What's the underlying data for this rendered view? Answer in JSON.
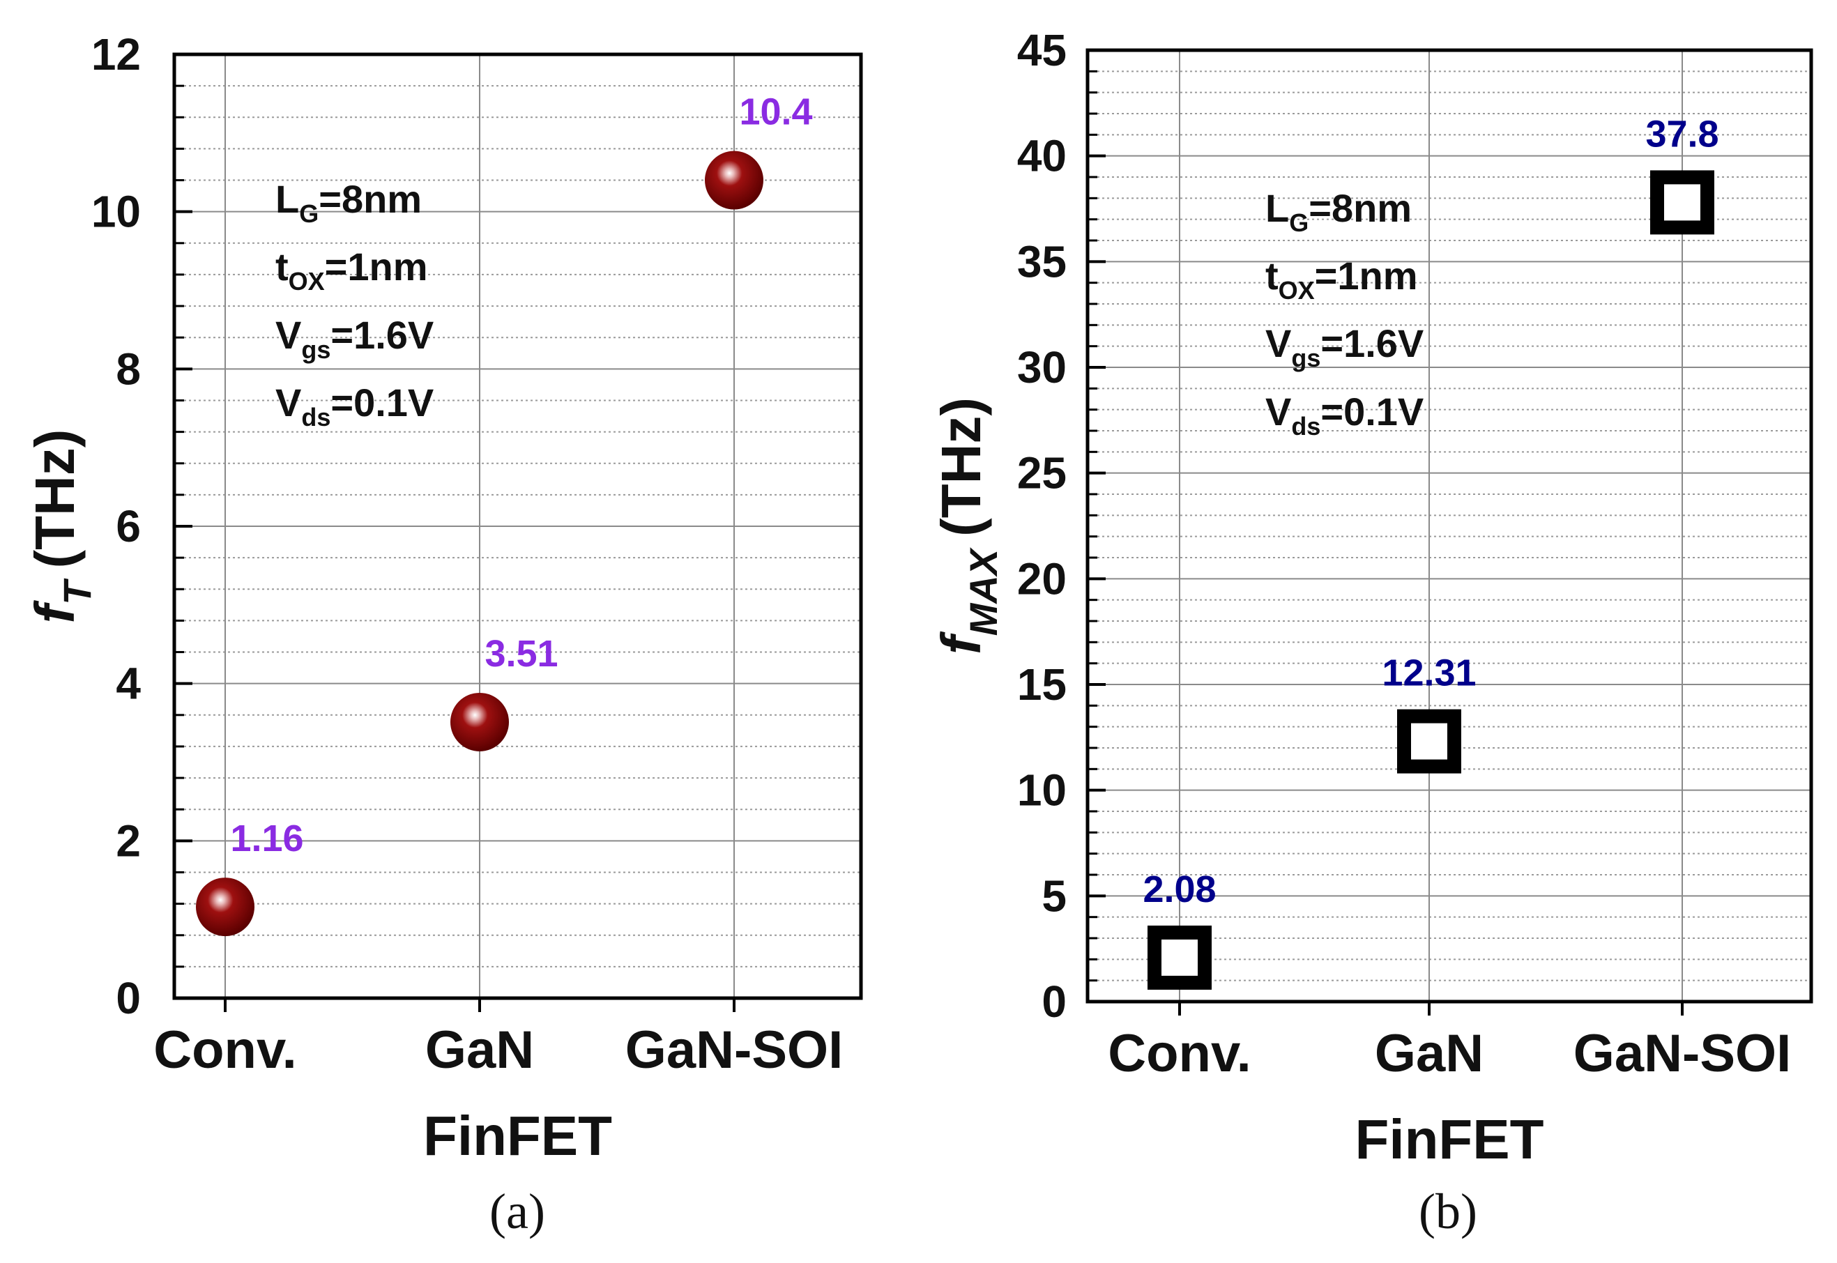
{
  "chart_data": [
    {
      "type": "scatter",
      "panel_label": "(a)",
      "categories": [
        "Conv.",
        "GaN",
        "GaN-SOI"
      ],
      "values": [
        1.16,
        3.51,
        10.4
      ],
      "value_labels": [
        "1.16",
        "3.51",
        "10.4"
      ],
      "ylabel": {
        "symbol": "f",
        "subscript": "T",
        "unit": "(THz)"
      },
      "xlabel": "FinFET",
      "ylim": [
        0,
        12
      ],
      "y_major_ticks": [
        0,
        2,
        4,
        6,
        8,
        10,
        12
      ],
      "y_tick_labels": [
        "0",
        "2",
        "4",
        "6",
        "8",
        "10",
        "12"
      ],
      "y_minor_step": 0.4,
      "grid": true,
      "marker": "sphere",
      "marker_color": "#8b0000",
      "label_color": "#8a2be2",
      "annotation": [
        {
          "main": "L",
          "sub": "G",
          "rest": "=8nm"
        },
        {
          "main": "t",
          "sub": "OX",
          "rest": "=1nm"
        },
        {
          "main": "V",
          "sub": "gs",
          "rest": "=1.6V"
        },
        {
          "main": "V",
          "sub": "ds",
          "rest": "=0.1V"
        }
      ]
    },
    {
      "type": "scatter",
      "panel_label": "(b)",
      "categories": [
        "Conv.",
        "GaN",
        "GaN-SOI"
      ],
      "values": [
        2.08,
        12.31,
        37.8
      ],
      "value_labels": [
        "2.08",
        "12.31",
        "37.8"
      ],
      "ylabel": {
        "symbol": "f",
        "subscript": "MAX",
        "unit": "(THz)"
      },
      "xlabel": "FinFET",
      "ylim": [
        0,
        45
      ],
      "y_major_ticks": [
        0,
        5,
        10,
        15,
        20,
        25,
        30,
        35,
        40,
        45
      ],
      "y_tick_labels": [
        "0",
        "5",
        "10",
        "15",
        "20",
        "25",
        "30",
        "35",
        "40",
        "45"
      ],
      "y_minor_step": 1,
      "grid": true,
      "marker": "open-square",
      "marker_color": "#000000",
      "label_color": "#00008b",
      "annotation": [
        {
          "main": "L",
          "sub": "G",
          "rest": "=8nm"
        },
        {
          "main": "t",
          "sub": "OX",
          "rest": "=1nm"
        },
        {
          "main": "V",
          "sub": "gs",
          "rest": "=1.6V"
        },
        {
          "main": "V",
          "sub": "ds",
          "rest": "=0.1V"
        }
      ]
    }
  ]
}
